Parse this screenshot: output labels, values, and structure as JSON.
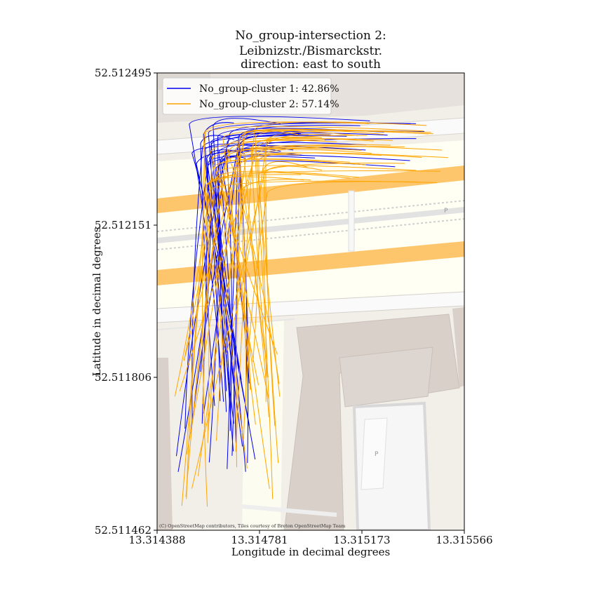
{
  "chart_data": {
    "type": "line",
    "title_lines": [
      "No_group-intersection 2:",
      "Leibnizstr./Bismarckstr.",
      "direction: east to south"
    ],
    "xlabel": "Longitude in decimal degrees",
    "ylabel": "Latitude in decimal degrees",
    "xlim": [
      13.314388,
      13.315566
    ],
    "ylim": [
      52.511462,
      52.512495
    ],
    "x_ticks": [
      "13.314388",
      "13.314781",
      "13.315173",
      "13.315566"
    ],
    "y_ticks": [
      "52.512495",
      "52.512151",
      "52.511806",
      "52.511462"
    ],
    "legend_placement": "top-left",
    "series": [
      {
        "name": "No_group-cluster 1: 42.86%",
        "color": "#0000ee",
        "trajectory_count": 30
      },
      {
        "name": "No_group-cluster 2: 57.14%",
        "color": "#ffa500",
        "trajectory_count": 40
      }
    ],
    "attribution": "(C) OpenStreetMap contributors, Tiles courtesy of Breton OpenStreetMap Team",
    "basemap_label": "P"
  }
}
